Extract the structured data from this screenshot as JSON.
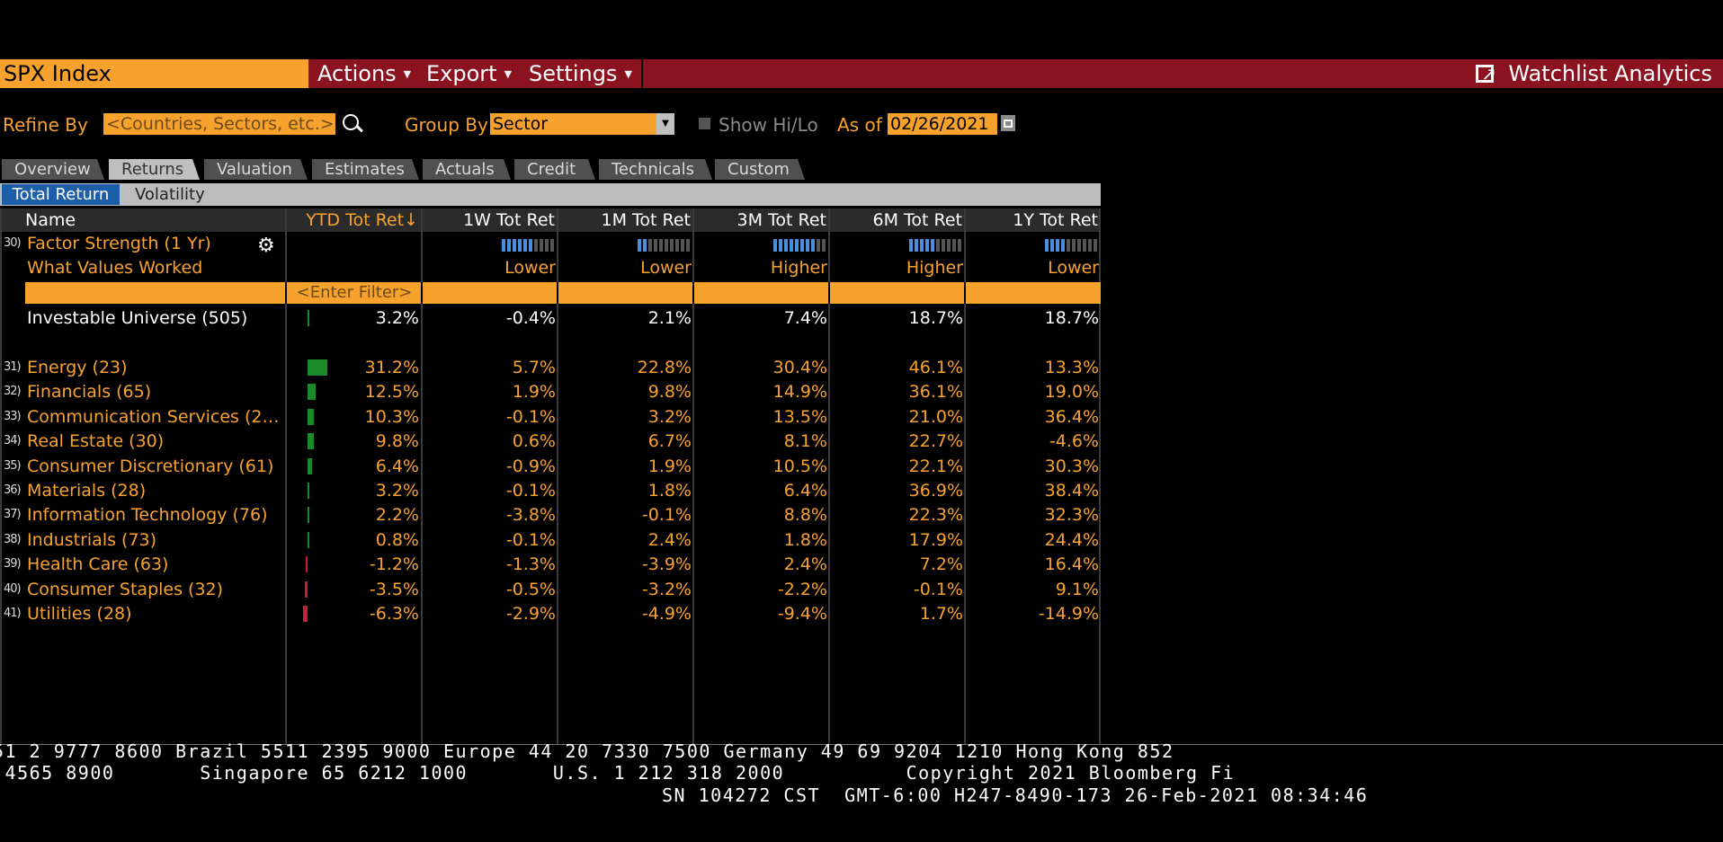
{
  "header": {
    "ticker": "SPX Index",
    "menus": [
      {
        "label": "Actions"
      },
      {
        "label": "Export"
      },
      {
        "label": "Settings"
      }
    ],
    "app_title": "Watchlist Analytics"
  },
  "filters": {
    "refine_label": "Refine By",
    "refine_placeholder": "<Countries, Sectors, etc.>",
    "group_label": "Group By",
    "group_value": "Sector",
    "hilo_label": "Show Hi/Lo",
    "asof_label": "As of",
    "asof_value": "02/26/2021"
  },
  "tabs": [
    "Overview",
    "Returns",
    "Valuation",
    "Estimates",
    "Actuals",
    "Credit",
    "Technicals",
    "Custom"
  ],
  "active_tab": "Returns",
  "subtabs": [
    "Total Return",
    "Volatility"
  ],
  "grid": {
    "columns": [
      "Name",
      "YTD Tot Ret",
      "1W Tot Ret",
      "1M Tot Ret",
      "3M Tot Ret",
      "6M Tot Ret",
      "1Y Tot Ret"
    ],
    "sort_indicator": "↓",
    "factor": {
      "num": "30)",
      "label": "Factor Strength (1 Yr)",
      "strength": [
        null,
        6,
        2,
        8,
        5,
        4
      ],
      "what_label": "What Values Worked",
      "worked": [
        "",
        "Lower",
        "Lower",
        "Higher",
        "Higher",
        "Lower"
      ]
    },
    "filter_placeholder": "<Enter Filter>",
    "universe": {
      "name": "Investable Universe (505)",
      "values": [
        "3.2%",
        "-0.4%",
        "2.1%",
        "7.4%",
        "18.7%",
        "18.7%"
      ],
      "ytd": 3.2
    },
    "rows": [
      {
        "num": "31)",
        "name": "Energy (23)",
        "ytd": 31.2,
        "values": [
          "31.2%",
          "5.7%",
          "22.8%",
          "30.4%",
          "46.1%",
          "13.3%"
        ]
      },
      {
        "num": "32)",
        "name": "Financials (65)",
        "ytd": 12.5,
        "values": [
          "12.5%",
          "1.9%",
          "9.8%",
          "14.9%",
          "36.1%",
          "19.0%"
        ]
      },
      {
        "num": "33)",
        "name": "Communication Services (2…",
        "ytd": 10.3,
        "values": [
          "10.3%",
          "-0.1%",
          "3.2%",
          "13.5%",
          "21.0%",
          "36.4%"
        ]
      },
      {
        "num": "34)",
        "name": "Real Estate (30)",
        "ytd": 9.8,
        "values": [
          "9.8%",
          "0.6%",
          "6.7%",
          "8.1%",
          "22.7%",
          "-4.6%"
        ]
      },
      {
        "num": "35)",
        "name": "Consumer Discretionary (61)",
        "ytd": 6.4,
        "values": [
          "6.4%",
          "-0.9%",
          "1.9%",
          "10.5%",
          "22.1%",
          "30.3%"
        ]
      },
      {
        "num": "36)",
        "name": "Materials (28)",
        "ytd": 3.2,
        "values": [
          "3.2%",
          "-0.1%",
          "1.8%",
          "6.4%",
          "36.9%",
          "38.4%"
        ]
      },
      {
        "num": "37)",
        "name": "Information Technology (76)",
        "ytd": 2.2,
        "values": [
          "2.2%",
          "-3.8%",
          "-0.1%",
          "8.8%",
          "22.3%",
          "32.3%"
        ]
      },
      {
        "num": "38)",
        "name": "Industrials (73)",
        "ytd": 0.8,
        "values": [
          "0.8%",
          "-0.1%",
          "2.4%",
          "1.8%",
          "17.9%",
          "24.4%"
        ]
      },
      {
        "num": "39)",
        "name": "Health Care (63)",
        "ytd": -1.2,
        "values": [
          "-1.2%",
          "-1.3%",
          "-3.9%",
          "2.4%",
          "7.2%",
          "16.4%"
        ]
      },
      {
        "num": "40)",
        "name": "Consumer Staples (32)",
        "ytd": -3.5,
        "values": [
          "-3.5%",
          "-0.5%",
          "-3.2%",
          "-2.2%",
          "-0.1%",
          "9.1%"
        ]
      },
      {
        "num": "41)",
        "name": "Utilities (28)",
        "ytd": -6.3,
        "values": [
          "-6.3%",
          "-2.9%",
          "-4.9%",
          "-9.4%",
          "1.7%",
          "-14.9%"
        ]
      }
    ]
  },
  "colors": {
    "positive_bar": "#1c8a2a",
    "negative_bar": "#c62033",
    "accent": "#f8a22e",
    "title_bar": "#8b1320"
  },
  "footer": {
    "line1": "51 2 9777 8600 Brazil 5511 2395 9000 Europe 44 20 7330 7500 Germany 49 69 9204 1210 Hong Kong 852",
    "line2": " 4565 8900       Singapore 65 6212 1000       U.S. 1 212 318 2000          Copyright 2021 Bloomberg Fi",
    "line3": "SN 104272 CST  GMT-6:00 H247-8490-173 26-Feb-2021 08:34:46"
  }
}
